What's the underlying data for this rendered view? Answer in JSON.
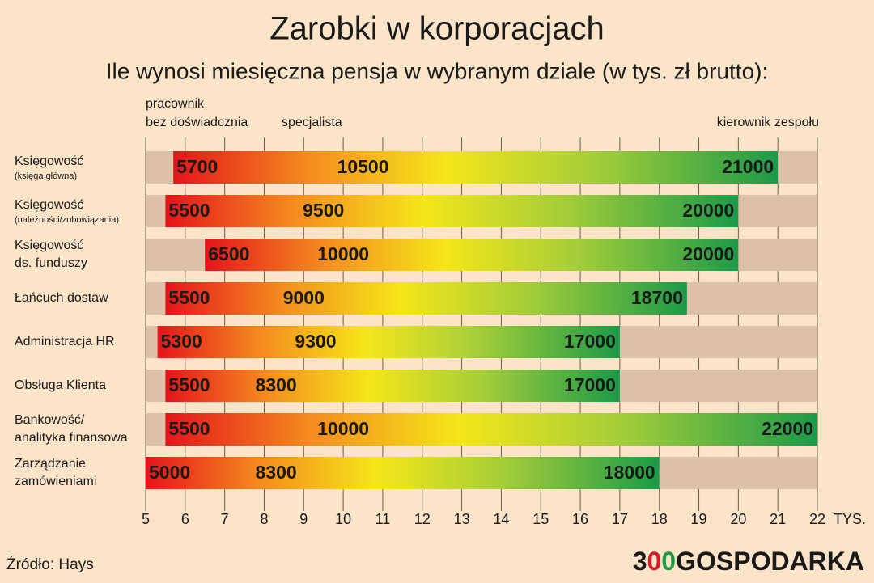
{
  "chart_data": {
    "type": "range_bar",
    "title": "Zarobki w korporacjach",
    "subtitle": "Ile wynosi miesięczna pensja w wybranym dziale (w tys. zł brutto):",
    "categories": [
      "Księgowość",
      "Księgowość",
      "Księgowość\nds. funduszy",
      "Łańcuch dostaw",
      "Administracja HR",
      "Obsługa Klienta",
      "Bankowość/\nanalityka finansowa",
      "Zarządzanie\nzamówieniami"
    ],
    "category_notes": [
      "(księga główna)",
      "(należności/zobowiązania)",
      null,
      null,
      null,
      null,
      null,
      null
    ],
    "series": [
      {
        "name": "pracownik\nbez doświadcznia",
        "values": [
          5.7,
          5.5,
          6.5,
          5.5,
          5.3,
          5.5,
          5.5,
          5.0
        ],
        "value_labels": [
          "5700",
          "5500",
          "6500",
          "5500",
          "5300",
          "5500",
          "5500",
          "5000"
        ]
      },
      {
        "name": "specjalista",
        "values": [
          10.5,
          9.5,
          10.0,
          9.0,
          9.3,
          8.3,
          10.0,
          8.3
        ],
        "value_labels": [
          "10500",
          "9500",
          "10000",
          "9000",
          "9300",
          "8300",
          "10000",
          "8300"
        ]
      },
      {
        "name": "kierownik zespołu",
        "values": [
          21.0,
          20.0,
          20.0,
          18.7,
          17.0,
          17.0,
          22.0,
          18.0
        ],
        "value_labels": [
          "21000",
          "20000",
          "20000",
          "18700",
          "17000",
          "17000",
          "22000",
          "18000"
        ]
      }
    ],
    "xlim": [
      5,
      22
    ],
    "xticks": [
      5,
      6,
      7,
      8,
      9,
      10,
      11,
      12,
      13,
      14,
      15,
      16,
      17,
      18,
      19,
      20,
      21,
      22
    ],
    "x_label": "TYS.",
    "grid": true,
    "track_color": "#dcc0a8",
    "source": "Źródło: Hays",
    "logo": [
      "3",
      "0",
      "0",
      "GOSPODARKA"
    ]
  }
}
